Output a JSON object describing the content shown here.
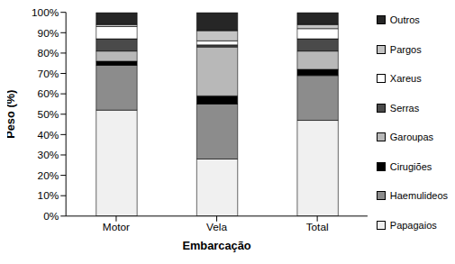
{
  "chart_data": {
    "type": "bar",
    "stacked": true,
    "x_label": "Embarcação",
    "y_label": "Peso (%)",
    "categories": [
      "Motor",
      "Vela",
      "Total"
    ],
    "ylim": [
      0,
      100
    ],
    "yticks": [
      {
        "value": 0,
        "label": "0%"
      },
      {
        "value": 10,
        "label": "10%"
      },
      {
        "value": 20,
        "label": "20%"
      },
      {
        "value": 30,
        "label": "30%"
      },
      {
        "value": 40,
        "label": "40%"
      },
      {
        "value": 50,
        "label": "50%"
      },
      {
        "value": 60,
        "label": "60%"
      },
      {
        "value": 70,
        "label": "70%"
      },
      {
        "value": 80,
        "label": "80%"
      },
      {
        "value": 90,
        "label": "90%"
      },
      {
        "value": 100,
        "label": "100%"
      }
    ],
    "grid": false,
    "legend": "right",
    "series": [
      {
        "name": "Papagaios",
        "color": "#f0f0f0",
        "values": [
          52,
          28,
          47
        ]
      },
      {
        "name": "Haemulideos",
        "color": "#8c8c8c",
        "values": [
          22,
          27,
          22
        ]
      },
      {
        "name": "Cirugiões",
        "color": "#000000",
        "values": [
          2,
          4,
          3
        ]
      },
      {
        "name": "Garoupas",
        "color": "#b8b8b8",
        "values": [
          5,
          24,
          9
        ]
      },
      {
        "name": "Serras",
        "color": "#4a4a4a",
        "values": [
          6,
          1,
          6
        ]
      },
      {
        "name": "Xareus",
        "color": "#ffffff",
        "values": [
          6,
          2,
          5
        ]
      },
      {
        "name": "Pargos",
        "color": "#c4c4c4",
        "values": [
          1,
          5,
          2
        ]
      },
      {
        "name": "Outros",
        "color": "#262626",
        "values": [
          6,
          9,
          6
        ]
      }
    ]
  }
}
